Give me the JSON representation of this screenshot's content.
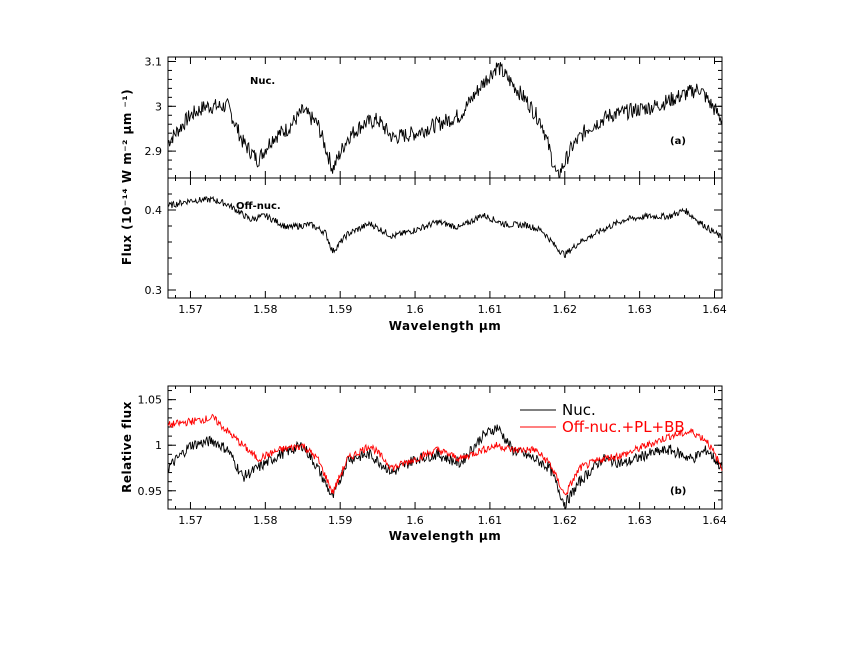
{
  "chart_data": [
    {
      "type": "line",
      "panel": "top-nuclear",
      "annotation_label": "Nuc.",
      "panel_tag": "(a)",
      "ylim": [
        2.84,
        3.11
      ],
      "xlim": [
        1.567,
        1.641
      ],
      "yticks": [
        {
          "value": 2.9,
          "label": "2.9"
        },
        {
          "value": 3.0,
          "label": "3"
        },
        {
          "value": 3.1,
          "label": "3.1"
        }
      ],
      "series": [
        {
          "color": "#000000",
          "x": [
            1.567,
            1.57,
            1.572,
            1.575,
            1.577,
            1.579,
            1.581,
            1.583,
            1.585,
            1.587,
            1.589,
            1.591,
            1.593,
            1.595,
            1.597,
            1.6,
            1.603,
            1.606,
            1.609,
            1.611,
            1.613,
            1.615,
            1.617,
            1.619,
            1.621,
            1.623,
            1.626,
            1.629,
            1.632,
            1.635,
            1.638,
            1.641
          ],
          "y": [
            2.92,
            2.98,
            3.0,
            3.0,
            2.92,
            2.88,
            2.93,
            2.95,
            2.99,
            2.96,
            2.86,
            2.93,
            2.96,
            2.97,
            2.93,
            2.94,
            2.96,
            2.98,
            3.05,
            3.09,
            3.05,
            3.01,
            2.96,
            2.84,
            2.91,
            2.95,
            2.98,
            2.99,
            3.0,
            3.02,
            3.04,
            2.97
          ]
        }
      ]
    },
    {
      "type": "line",
      "panel": "middle-off-nuclear",
      "annotation_label": "Off-nuc.",
      "ylabel": "Flux (10⁻¹⁴ W m⁻² μm ⁻¹)",
      "xlabel": "Wavelength μm",
      "xlim": [
        1.567,
        1.641
      ],
      "ylim": [
        0.29,
        0.44
      ],
      "xticks": [
        {
          "value": 1.57,
          "label": "1.57"
        },
        {
          "value": 1.58,
          "label": "1.58"
        },
        {
          "value": 1.59,
          "label": "1.59"
        },
        {
          "value": 1.6,
          "label": "1.6"
        },
        {
          "value": 1.61,
          "label": "1.61"
        },
        {
          "value": 1.62,
          "label": "1.62"
        },
        {
          "value": 1.63,
          "label": "1.63"
        },
        {
          "value": 1.64,
          "label": "1.64"
        }
      ],
      "yticks": [
        {
          "value": 0.3,
          "label": "0.3"
        },
        {
          "value": 0.4,
          "label": "0.4"
        }
      ],
      "series": [
        {
          "color": "#000000",
          "x": [
            1.567,
            1.57,
            1.573,
            1.575,
            1.578,
            1.58,
            1.583,
            1.586,
            1.588,
            1.589,
            1.591,
            1.594,
            1.597,
            1.6,
            1.603,
            1.606,
            1.609,
            1.612,
            1.615,
            1.617,
            1.619,
            1.62,
            1.622,
            1.625,
            1.628,
            1.631,
            1.634,
            1.636,
            1.638,
            1.641
          ],
          "y": [
            0.405,
            0.412,
            0.413,
            0.407,
            0.388,
            0.393,
            0.378,
            0.382,
            0.372,
            0.348,
            0.37,
            0.383,
            0.367,
            0.375,
            0.385,
            0.378,
            0.394,
            0.382,
            0.381,
            0.374,
            0.352,
            0.344,
            0.36,
            0.375,
            0.388,
            0.392,
            0.392,
            0.4,
            0.385,
            0.365
          ]
        }
      ]
    },
    {
      "type": "line",
      "panel": "bottom-comparison",
      "panel_tag": "(b)",
      "ylabel": "Relative flux",
      "xlabel": "Wavelength μm",
      "xlim": [
        1.567,
        1.641
      ],
      "ylim": [
        0.93,
        1.065
      ],
      "legend_position": "top-right",
      "xticks": [
        {
          "value": 1.57,
          "label": "1.57"
        },
        {
          "value": 1.58,
          "label": "1.58"
        },
        {
          "value": 1.59,
          "label": "1.59"
        },
        {
          "value": 1.6,
          "label": "1.6"
        },
        {
          "value": 1.61,
          "label": "1.61"
        },
        {
          "value": 1.62,
          "label": "1.62"
        },
        {
          "value": 1.63,
          "label": "1.63"
        },
        {
          "value": 1.64,
          "label": "1.64"
        }
      ],
      "yticks": [
        {
          "value": 0.95,
          "label": "0.95"
        },
        {
          "value": 1.0,
          "label": "1"
        },
        {
          "value": 1.05,
          "label": "1.05"
        }
      ],
      "series": [
        {
          "name": "Nuc.",
          "color": "#000000",
          "x": [
            1.567,
            1.57,
            1.573,
            1.575,
            1.577,
            1.579,
            1.582,
            1.585,
            1.587,
            1.589,
            1.591,
            1.594,
            1.597,
            1.6,
            1.603,
            1.606,
            1.609,
            1.611,
            1.613,
            1.616,
            1.618,
            1.62,
            1.622,
            1.625,
            1.628,
            1.631,
            1.634,
            1.637,
            1.639,
            1.641
          ],
          "y": [
            0.975,
            1.0,
            1.005,
            0.995,
            0.965,
            0.975,
            0.99,
            1.0,
            0.975,
            0.942,
            0.985,
            0.99,
            0.97,
            0.985,
            0.99,
            0.98,
            1.01,
            1.02,
            0.995,
            0.985,
            0.975,
            0.935,
            0.96,
            0.985,
            0.98,
            0.99,
            0.995,
            0.985,
            0.995,
            0.975
          ]
        },
        {
          "name": "Off-nuc.+PL+BB",
          "color": "#ff0000",
          "x": [
            1.567,
            1.57,
            1.573,
            1.575,
            1.577,
            1.579,
            1.582,
            1.585,
            1.587,
            1.589,
            1.591,
            1.594,
            1.597,
            1.6,
            1.603,
            1.606,
            1.609,
            1.611,
            1.613,
            1.616,
            1.618,
            1.62,
            1.622,
            1.625,
            1.628,
            1.631,
            1.634,
            1.637,
            1.639,
            1.641
          ],
          "y": [
            1.022,
            1.026,
            1.03,
            1.015,
            1.0,
            0.985,
            0.995,
            1.0,
            0.985,
            0.948,
            0.985,
            1.0,
            0.975,
            0.985,
            0.995,
            0.985,
            0.995,
            1.0,
            0.995,
            0.995,
            0.98,
            0.945,
            0.975,
            0.985,
            0.99,
            1.0,
            1.01,
            1.015,
            1.005,
            0.975
          ]
        }
      ]
    }
  ]
}
